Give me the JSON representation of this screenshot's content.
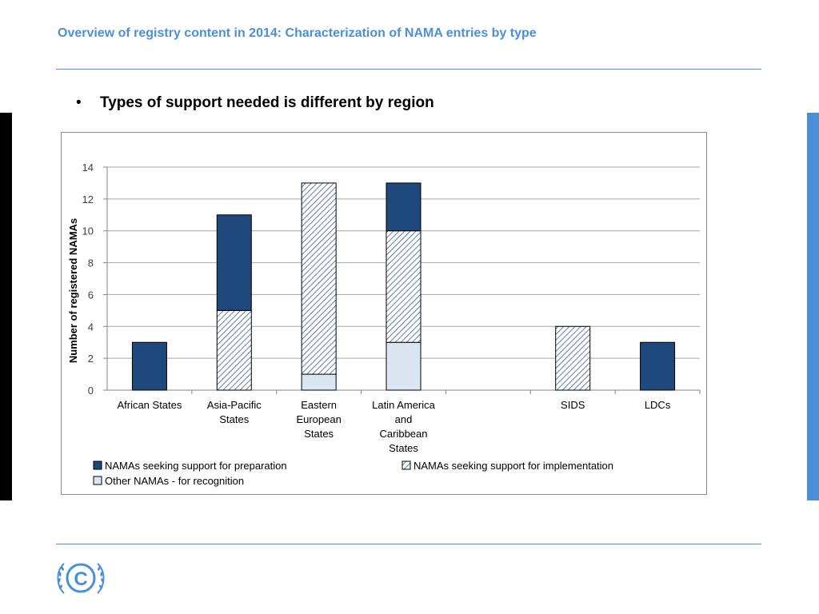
{
  "slide": {
    "title": "Overview of registry content in 2014: Characterization of NAMA entries by type",
    "bullet_marker": "•",
    "bullet_text": "Types of support needed is different by region"
  },
  "colors": {
    "accent": "#4a90d9",
    "preparation": "#1f497d",
    "implementation_stroke": "#1f497d",
    "recognition": "#dce6f2"
  },
  "logo": {
    "name": "unfccc-logo",
    "letter": "C"
  },
  "chart_data": {
    "type": "bar",
    "stacked": true,
    "ylabel": "Number of registered NAMAs",
    "ylim": [
      0,
      14
    ],
    "yticks": [
      0,
      2,
      4,
      6,
      8,
      10,
      12,
      14
    ],
    "grid": true,
    "categories": [
      [
        "African States"
      ],
      [
        "Asia-Pacific",
        "States"
      ],
      [
        "Eastern",
        "European",
        "States"
      ],
      [
        "Latin America",
        "and",
        "Caribbean",
        "States"
      ],
      [
        ""
      ],
      [
        "SIDS"
      ],
      [
        "LDCs"
      ]
    ],
    "series": [
      {
        "name": "Other NAMAs - for recognition",
        "key": "recognition",
        "values": [
          0,
          0,
          1,
          3,
          0,
          0,
          0
        ]
      },
      {
        "name": "NAMAs seeking support for implementation",
        "key": "implementation",
        "values": [
          0,
          5,
          12,
          7,
          0,
          4,
          0
        ]
      },
      {
        "name": "NAMAs seeking support for preparation",
        "key": "preparation",
        "values": [
          3,
          6,
          0,
          3,
          0,
          0,
          3
        ]
      }
    ],
    "legend_order": [
      "preparation",
      "implementation",
      "recognition"
    ],
    "legend_position": "bottom"
  }
}
